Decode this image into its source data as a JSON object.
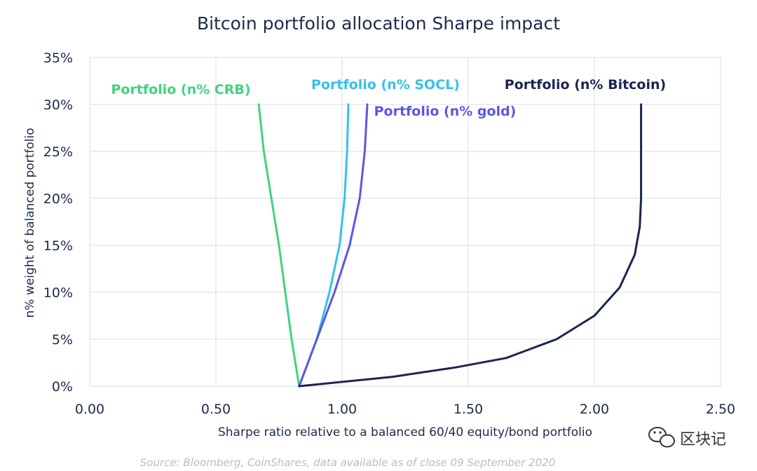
{
  "chart_data": {
    "type": "line",
    "title": "Bitcoin portfolio allocation Sharpe impact",
    "xlabel": "Sharpe ratio relative to a balanced 60/40 equity/bond portfolio",
    "ylabel": "n% weight of balanced portfolio",
    "xlim": [
      0,
      2.5
    ],
    "ylim": [
      0,
      35
    ],
    "x_ticks": [
      "0.00",
      "0.50",
      "1.00",
      "1.50",
      "2.00",
      "2.50"
    ],
    "y_ticks": [
      "0%",
      "5%",
      "10%",
      "15%",
      "20%",
      "25%",
      "30%",
      "35%"
    ],
    "grid": "horizontal and vertical",
    "series": [
      {
        "name": "Portfolio (n% CRB)",
        "color": "#3fd47f",
        "points": [
          [
            0.83,
            0
          ],
          [
            0.8,
            5
          ],
          [
            0.775,
            10
          ],
          [
            0.75,
            15
          ],
          [
            0.72,
            20
          ],
          [
            0.69,
            25
          ],
          [
            0.67,
            30
          ]
        ]
      },
      {
        "name": "Portfolio (n% SOCL)",
        "color": "#35c0ea",
        "points": [
          [
            0.83,
            0
          ],
          [
            0.9,
            5
          ],
          [
            0.95,
            10
          ],
          [
            0.99,
            15
          ],
          [
            1.01,
            20
          ],
          [
            1.02,
            25
          ],
          [
            1.025,
            30
          ]
        ]
      },
      {
        "name": "Portfolio (n% gold)",
        "color": "#5b57e0",
        "points": [
          [
            0.83,
            0
          ],
          [
            0.9,
            5
          ],
          [
            0.97,
            10
          ],
          [
            1.03,
            15
          ],
          [
            1.07,
            20
          ],
          [
            1.09,
            25
          ],
          [
            1.1,
            30
          ]
        ]
      },
      {
        "name": "Portfolio (n% Bitcoin)",
        "color": "#1b2551",
        "points": [
          [
            0.83,
            0
          ],
          [
            1.2,
            1
          ],
          [
            1.45,
            2
          ],
          [
            1.65,
            3
          ],
          [
            1.85,
            5
          ],
          [
            2.0,
            7.5
          ],
          [
            2.1,
            10.5
          ],
          [
            2.16,
            14
          ],
          [
            2.18,
            17
          ],
          [
            2.185,
            20
          ],
          [
            2.185,
            25
          ],
          [
            2.185,
            30
          ]
        ]
      }
    ]
  },
  "source": "Source: Bloomberg, CoinShares, data available as of close 09 September 2020",
  "watermark": {
    "icon": "wechat-icon",
    "text": "区块记"
  }
}
